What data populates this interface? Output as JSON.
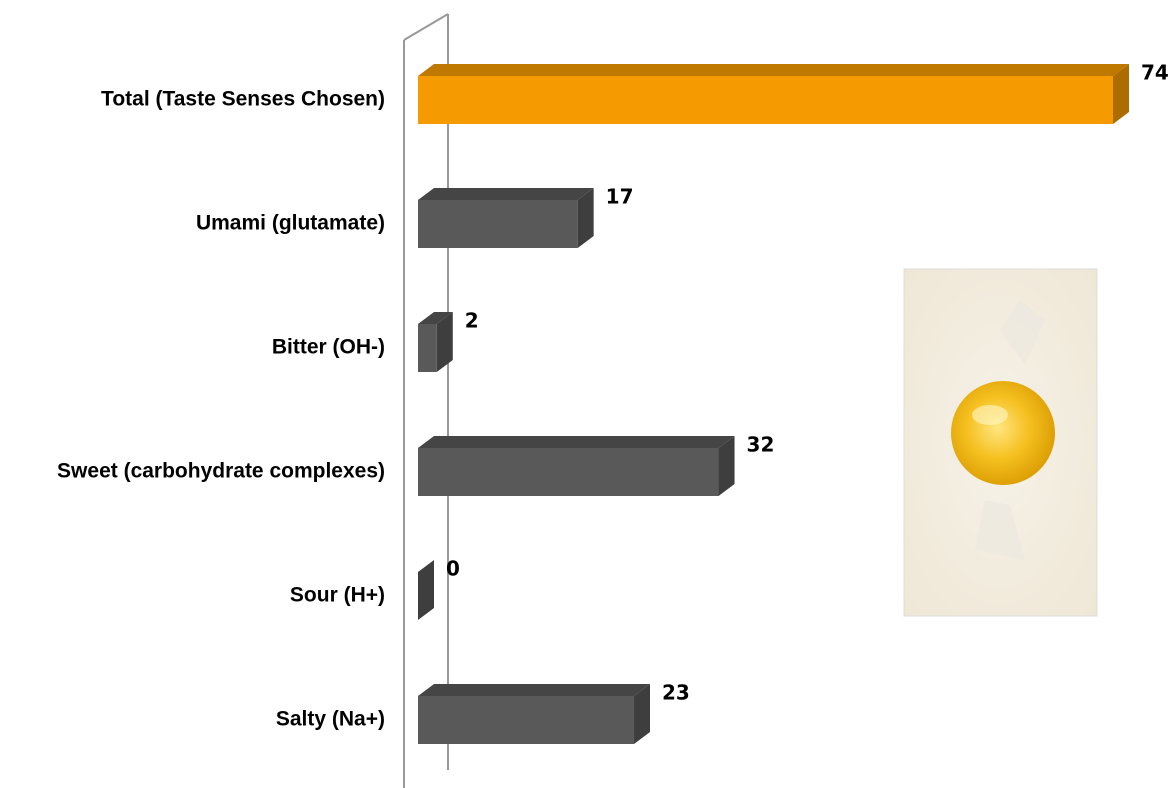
{
  "chart_data": {
    "type": "bar",
    "orientation": "horizontal",
    "categories": [
      "Total (Taste Senses Chosen)",
      "Umami (glutamate)",
      "Bitter (OH-)",
      "Sweet (carbohydrate complexes)",
      "Sour (H+)",
      "Salty (Na+)"
    ],
    "values": [
      74,
      17,
      2,
      32,
      0,
      23
    ],
    "colors": [
      "#f59a00",
      "#595959",
      "#595959",
      "#595959",
      "#595959",
      "#595959"
    ],
    "xlim": [
      0,
      74
    ]
  }
}
